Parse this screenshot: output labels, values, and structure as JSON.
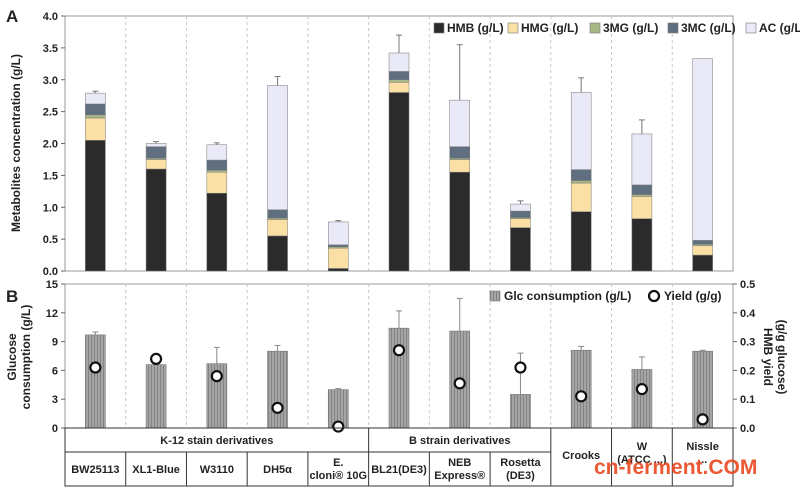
{
  "panel_a_letter": "A",
  "panel_b_letter": "B",
  "watermark": "cn-ferment.COM",
  "colors": {
    "HMB": "#2b2b2b",
    "HMG": "#fbe0a6",
    "3MG": "#a8b985",
    "3MC": "#5f6f80",
    "AC": "#e9e9f7",
    "glc_bar": "#9a9a9a",
    "yield_marker": "#ffffff",
    "watermark": "#e8461f"
  },
  "strains": [
    "BW25113",
    "XL1-Blue",
    "W3110",
    "DH5α",
    "E. cloni® 10G",
    "BL21(DE3)",
    "NEB Express®",
    "Rosetta (DE3)",
    "Crooks",
    "W (ATCC ...)",
    "Nissle ..."
  ],
  "groups": [
    {
      "label": "K-12 stain derivatives",
      "from": 0,
      "to": 4
    },
    {
      "label": "B strain derivatives",
      "from": 5,
      "to": 7
    },
    {
      "label": "Crooks",
      "from": 8,
      "to": 8
    },
    {
      "label": "W",
      "from": 9,
      "to": 9
    },
    {
      "label": "Nissle",
      "from": 10,
      "to": 10
    }
  ],
  "chart_data": [
    {
      "type": "bar",
      "stacked": true,
      "ylabel": "Metabolites concentration (g/L)",
      "ylim": [
        0,
        4.0
      ],
      "yticks": [
        "0.0",
        "0.5",
        "1.0",
        "1.5",
        "2.0",
        "2.5",
        "3.0",
        "3.5",
        "4.0"
      ],
      "grid": "vertical dashed separators",
      "legend": "top-right",
      "series": [
        {
          "name": "HMB (g/L)",
          "key": "HMB",
          "values": [
            2.05,
            1.6,
            1.22,
            0.55,
            0.04,
            2.8,
            1.55,
            0.68,
            0.93,
            0.82,
            0.25
          ]
        },
        {
          "name": "HMG (g/L)",
          "key": "HMG",
          "values": [
            0.35,
            0.15,
            0.33,
            0.26,
            0.32,
            0.16,
            0.2,
            0.14,
            0.45,
            0.35,
            0.15
          ]
        },
        {
          "name": "3MG (g/L)",
          "key": "3MG",
          "values": [
            0.05,
            0.02,
            0.03,
            0.02,
            0.02,
            0.04,
            0.02,
            0.02,
            0.04,
            0.03,
            0.02
          ]
        },
        {
          "name": "3MC (g/L)",
          "key": "3MC",
          "values": [
            0.17,
            0.18,
            0.16,
            0.13,
            0.03,
            0.13,
            0.18,
            0.1,
            0.17,
            0.15,
            0.06
          ]
        },
        {
          "name": "AC (g/L)",
          "key": "AC",
          "values": [
            0.17,
            0.05,
            0.24,
            1.95,
            0.36,
            0.29,
            0.73,
            0.11,
            1.21,
            0.8,
            2.85
          ]
        }
      ],
      "error_top": [
        0.03,
        0.03,
        0.03,
        0.14,
        0.02,
        0.28,
        0.87,
        0.05,
        0.23,
        0.22,
        0.0
      ]
    },
    {
      "type": "bar",
      "ylabel": "Glucose consumption (g/L)",
      "ylim": [
        0,
        15
      ],
      "yticks": [
        "0",
        "3",
        "6",
        "9",
        "12",
        "15"
      ],
      "y2label": "HMB yield (g/g glucose)",
      "y2lim": [
        0,
        0.5
      ],
      "y2ticks": [
        "0.0",
        "0.1",
        "0.2",
        "0.3",
        "0.4",
        "0.5"
      ],
      "legend": "top-right",
      "series": [
        {
          "name": "Glc consumption (g/L)",
          "type": "bar",
          "axis": "left",
          "values": [
            9.7,
            6.6,
            6.7,
            8.0,
            4.0,
            10.4,
            10.1,
            3.5,
            8.1,
            6.1,
            8.0
          ],
          "error": [
            0.3,
            0.1,
            1.7,
            0.6,
            0.1,
            1.8,
            3.4,
            4.3,
            0.4,
            1.3,
            0.1
          ]
        },
        {
          "name": "Yield (g/g)",
          "type": "scatter",
          "axis": "right",
          "values": [
            0.21,
            0.24,
            0.18,
            0.07,
            0.005,
            0.27,
            0.155,
            0.21,
            0.11,
            0.135,
            0.03
          ]
        }
      ]
    }
  ]
}
